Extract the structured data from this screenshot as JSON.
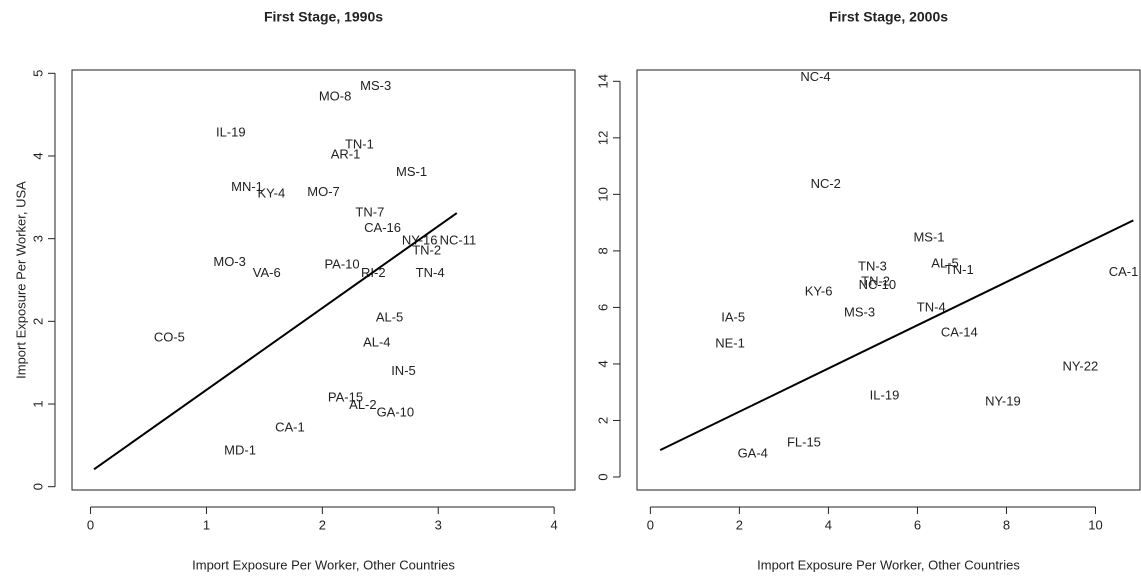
{
  "chart_data": [
    {
      "type": "scatter",
      "title": "First Stage, 1990s",
      "xlabel": "Import Exposure Per Worker, Other Countries",
      "ylabel": "Import Exposure Per Worker, USA",
      "xlim": [
        -0.16,
        4.18
      ],
      "ylim": [
        -0.04,
        5.04
      ],
      "xticks": [
        0,
        1,
        2,
        3,
        4
      ],
      "yticks": [
        0,
        1,
        2,
        3,
        4,
        5
      ],
      "color": "#222222",
      "labels": [
        "MS-3",
        "MO-8",
        "IL-19",
        "TN-1",
        "AR-1",
        "MS-1",
        "MN-1",
        "KY-4",
        "MO-7",
        "TN-7",
        "CA-16",
        "NC-11",
        "NY-16",
        "TN-2",
        "MO-3",
        "PA-10",
        "TN-4",
        "RI-2",
        "VA-6",
        "AL-5",
        "CO-5",
        "AL-4",
        "IN-5",
        "PA-15",
        "AL-2",
        "GA-10",
        "CA-1",
        "MD-1"
      ],
      "x": [
        2.46,
        2.11,
        1.21,
        2.32,
        2.2,
        2.77,
        1.35,
        1.56,
        2.01,
        2.41,
        2.52,
        3.17,
        2.84,
        2.9,
        1.2,
        2.17,
        2.93,
        2.44,
        1.52,
        2.58,
        0.68,
        2.47,
        2.7,
        2.2,
        2.35,
        2.63,
        1.72,
        1.29
      ],
      "values": [
        4.84,
        4.71,
        4.28,
        4.13,
        4.01,
        3.8,
        3.62,
        3.54,
        3.56,
        3.31,
        3.12,
        2.97,
        2.97,
        2.85,
        2.71,
        2.68,
        2.58,
        2.58,
        2.58,
        2.04,
        1.8,
        1.74,
        1.39,
        1.07,
        0.98,
        0.89,
        0.71,
        0.43
      ],
      "fit": {
        "x": [
          0.03,
          3.16
        ],
        "y": [
          0.21,
          3.31
        ]
      }
    },
    {
      "type": "scatter",
      "title": "First Stage, 2000s",
      "xlabel": "Import Exposure Per Worker, Other Countries",
      "ylabel": null,
      "xlim": [
        -0.3,
        11.0
      ],
      "ylim": [
        -0.46,
        14.4
      ],
      "xticks": [
        0,
        2,
        4,
        6,
        8,
        10
      ],
      "yticks": [
        0,
        2,
        4,
        6,
        8,
        10,
        12,
        14
      ],
      "color": "#222222",
      "labels": [
        "NC-4",
        "NC-2",
        "MS-1",
        "AL-5",
        "TN-1",
        "TN-3",
        "TN-2",
        "NC-10",
        "CA-1",
        "KY-6",
        "TN-4",
        "MS-3",
        "CA-14",
        "IA-5",
        "NE-1",
        "NY-22",
        "IL-19",
        "NY-19",
        "FL-15",
        "GA-4"
      ],
      "x": [
        3.71,
        3.94,
        6.26,
        6.62,
        6.94,
        4.99,
        5.06,
        5.1,
        10.63,
        3.78,
        6.31,
        4.7,
        6.94,
        1.86,
        1.79,
        9.66,
        5.26,
        7.92,
        3.45,
        2.3
      ],
      "values": [
        14.13,
        10.35,
        8.45,
        7.53,
        7.31,
        7.42,
        6.89,
        6.78,
        7.24,
        6.54,
        5.97,
        5.8,
        5.09,
        5.62,
        4.7,
        3.89,
        2.86,
        2.65,
        1.2,
        0.81
      ],
      "fit": {
        "x": [
          0.22,
          10.85
        ],
        "y": [
          0.95,
          9.08
        ]
      }
    }
  ]
}
